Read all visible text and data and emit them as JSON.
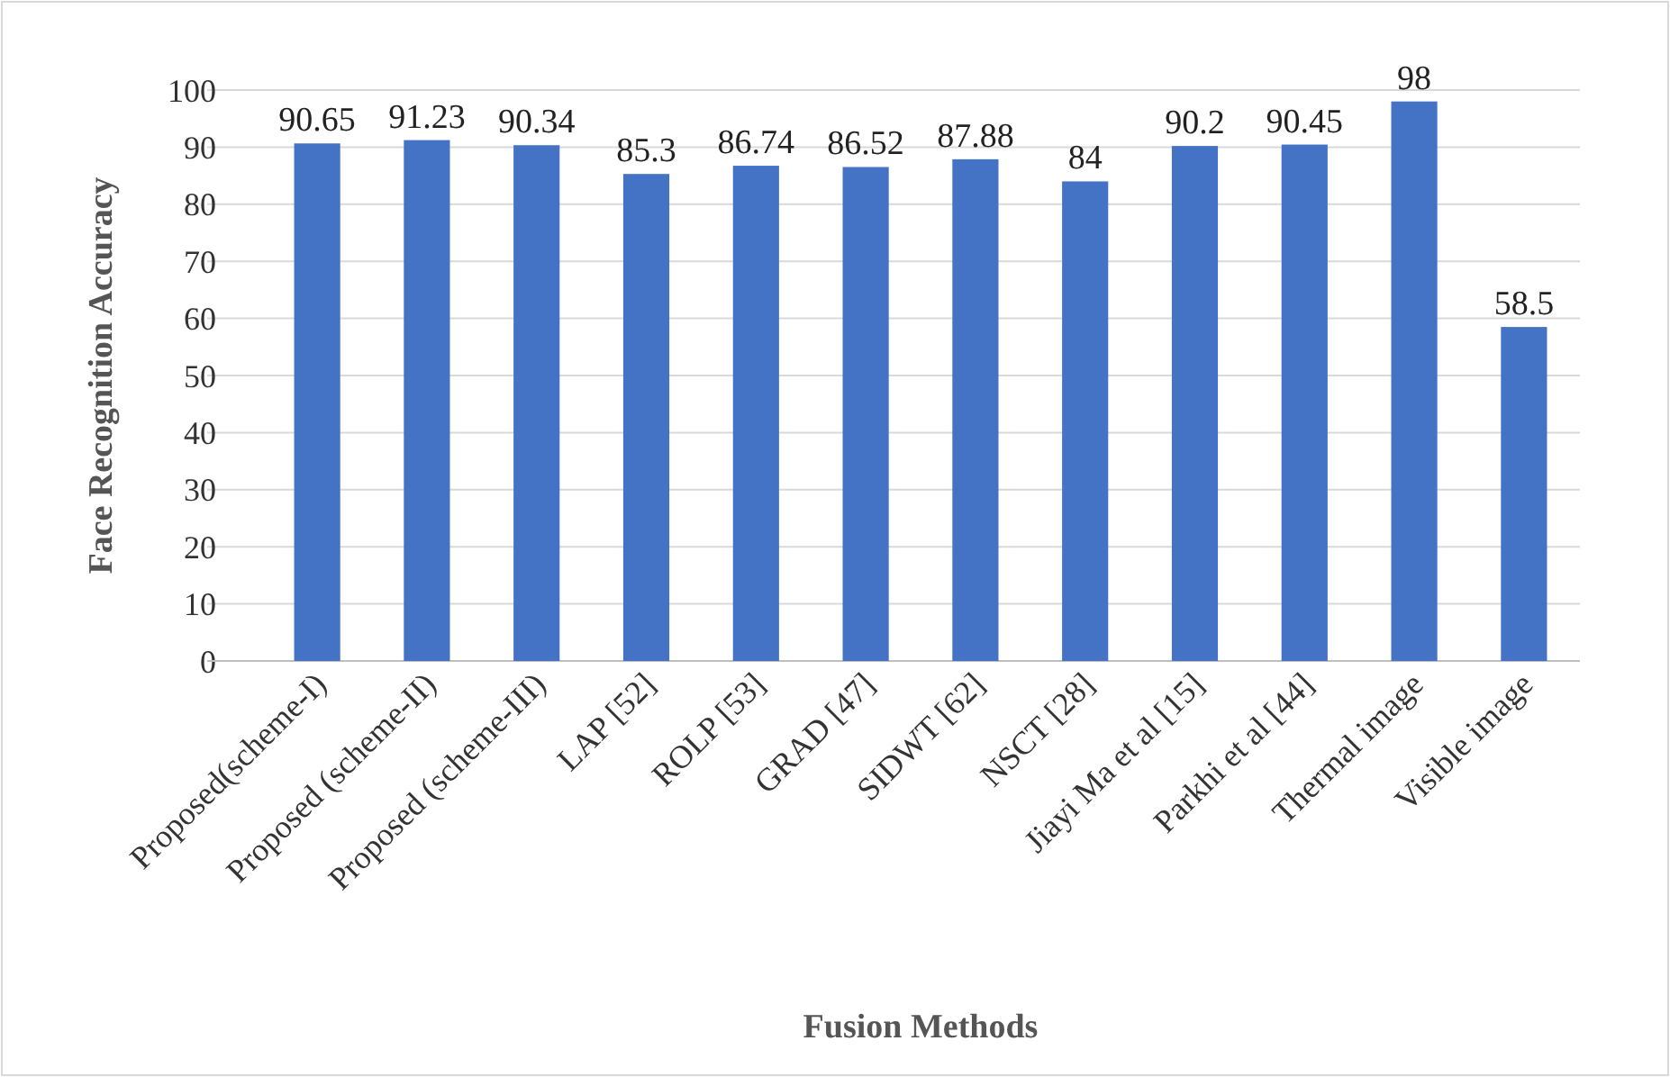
{
  "chart_data": {
    "type": "bar",
    "xlabel": "Fusion Methods",
    "ylabel": "Face Recognition Accuracy",
    "categories": [
      "Proposed(scheme-I)",
      "Proposed (scheme-II)",
      "Proposed (scheme-III)",
      "LAP [52]",
      "ROLP [53]",
      "GRAD [47]",
      "SIDWT [62]",
      "NSCT [28]",
      "Jiayi Ma et al [15]",
      "Parkhi et al [44]",
      "Thermal image",
      "Visible image"
    ],
    "values": [
      90.65,
      91.23,
      90.34,
      85.3,
      86.74,
      86.52,
      87.88,
      84,
      90.2,
      90.45,
      98,
      58.5
    ],
    "color": "#4472c4",
    "ylim": [
      0,
      100
    ],
    "yticks": [
      0,
      10,
      20,
      30,
      40,
      50,
      60,
      70,
      80,
      90,
      100
    ],
    "grid": "y",
    "data_labels": true
  }
}
